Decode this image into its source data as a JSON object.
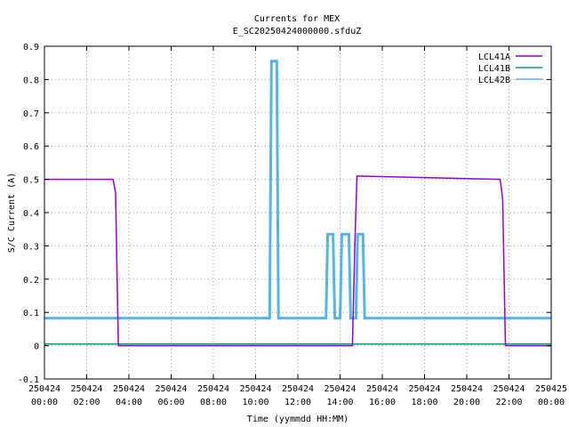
{
  "chart_data": {
    "type": "line",
    "title": "Currents for MEX",
    "subtitle": "E_SC20250424000000.sfduZ",
    "xlabel": "Time (yymmdd HH:MM)",
    "ylabel": "S/C Current (A)",
    "xlim": [
      "2025-04-24 00:00",
      "2025-04-25 00:00"
    ],
    "ylim": [
      -0.1,
      0.9
    ],
    "grid": true,
    "legend_position": "top-right",
    "x_ticks": [
      {
        "date": "250424",
        "time": "00:00"
      },
      {
        "date": "250424",
        "time": "02:00"
      },
      {
        "date": "250424",
        "time": "04:00"
      },
      {
        "date": "250424",
        "time": "06:00"
      },
      {
        "date": "250424",
        "time": "08:00"
      },
      {
        "date": "250424",
        "time": "10:00"
      },
      {
        "date": "250424",
        "time": "12:00"
      },
      {
        "date": "250424",
        "time": "14:00"
      },
      {
        "date": "250424",
        "time": "16:00"
      },
      {
        "date": "250424",
        "time": "18:00"
      },
      {
        "date": "250424",
        "time": "20:00"
      },
      {
        "date": "250424",
        "time": "22:00"
      },
      {
        "date": "250425",
        "time": "00:00"
      }
    ],
    "y_ticks": [
      "-0.1",
      "0",
      "0.1",
      "0.2",
      "0.3",
      "0.4",
      "0.5",
      "0.6",
      "0.7",
      "0.8",
      "0.9"
    ],
    "series": [
      {
        "name": "LCL41A",
        "color": "#9400d3",
        "x": [
          "2025-04-24 00:00",
          "2025-04-24 03:15",
          "2025-04-24 03:22",
          "2025-04-24 03:30",
          "2025-04-24 14:35",
          "2025-04-24 14:42",
          "2025-04-24 14:48",
          "2025-04-24 21:35",
          "2025-04-24 21:42",
          "2025-04-24 21:50",
          "2025-04-25 00:00"
        ],
        "y": [
          0.5,
          0.5,
          0.46,
          0.0,
          0.0,
          0.3,
          0.51,
          0.5,
          0.44,
          0.0,
          0.0
        ]
      },
      {
        "name": "LCL41B",
        "color": "#009e73",
        "x": [
          "2025-04-24 00:00",
          "2025-04-25 00:00"
        ],
        "y": [
          0.005,
          0.005
        ]
      },
      {
        "name": "LCL42B",
        "color": "#56b4e9",
        "x": [
          "2025-04-24 00:00",
          "2025-04-24 10:40",
          "2025-04-24 10:45",
          "2025-04-24 11:00",
          "2025-04-24 11:05",
          "2025-04-24 13:20",
          "2025-04-24 13:25",
          "2025-04-24 13:40",
          "2025-04-24 13:45",
          "2025-04-24 14:00",
          "2025-04-24 14:05",
          "2025-04-24 14:25",
          "2025-04-24 14:30",
          "2025-04-24 14:45",
          "2025-04-24 14:50",
          "2025-04-24 15:05",
          "2025-04-24 15:10",
          "2025-04-25 00:00"
        ],
        "y": [
          0.083,
          0.083,
          0.855,
          0.855,
          0.083,
          0.083,
          0.335,
          0.335,
          0.083,
          0.083,
          0.335,
          0.335,
          0.083,
          0.083,
          0.335,
          0.335,
          0.083,
          0.083
        ]
      }
    ]
  }
}
